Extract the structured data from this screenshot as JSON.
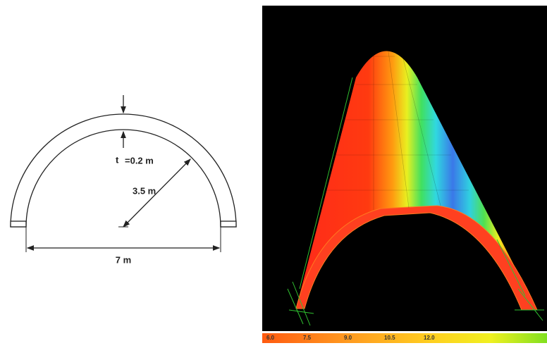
{
  "diagram": {
    "thickness_symbol": "t",
    "thickness": "=0.2 m",
    "radius": "3.5 m",
    "span": "7 m"
  },
  "contour_scale": {
    "labels": [
      "6.0",
      "7.5",
      "9.0",
      "10.5",
      "12.0"
    ]
  }
}
